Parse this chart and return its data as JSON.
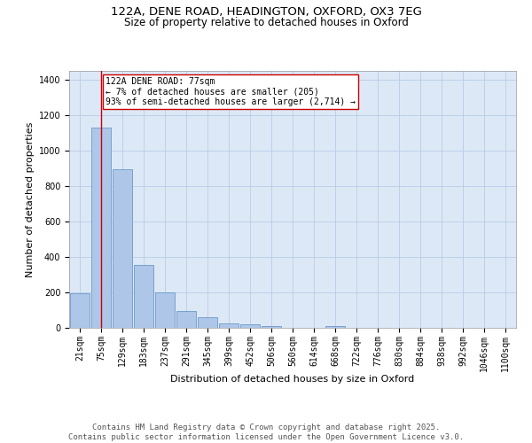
{
  "title_line1": "122A, DENE ROAD, HEADINGTON, OXFORD, OX3 7EG",
  "title_line2": "Size of property relative to detached houses in Oxford",
  "xlabel": "Distribution of detached houses by size in Oxford",
  "ylabel": "Number of detached properties",
  "bar_labels": [
    "21sqm",
    "75sqm",
    "129sqm",
    "183sqm",
    "237sqm",
    "291sqm",
    "345sqm",
    "399sqm",
    "452sqm",
    "506sqm",
    "560sqm",
    "614sqm",
    "668sqm",
    "722sqm",
    "776sqm",
    "830sqm",
    "884sqm",
    "938sqm",
    "992sqm",
    "1046sqm",
    "1100sqm"
  ],
  "bar_values": [
    195,
    1130,
    895,
    355,
    200,
    95,
    60,
    25,
    20,
    12,
    0,
    0,
    12,
    0,
    0,
    0,
    0,
    0,
    0,
    0,
    0
  ],
  "bar_color": "#aec6e8",
  "bar_edge_color": "#5a8fc2",
  "annotation_text": "122A DENE ROAD: 77sqm\n← 7% of detached houses are smaller (205)\n93% of semi-detached houses are larger (2,714) →",
  "annotation_box_color": "#ffffff",
  "annotation_box_edge_color": "#cc0000",
  "vline_x_index": 1,
  "vline_color": "#cc0000",
  "ylim": [
    0,
    1450
  ],
  "yticks": [
    0,
    200,
    400,
    600,
    800,
    1000,
    1200,
    1400
  ],
  "background_color": "#dde8f7",
  "grid_color": "#b8cce4",
  "footer_text": "Contains HM Land Registry data © Crown copyright and database right 2025.\nContains public sector information licensed under the Open Government Licence v3.0.",
  "title_fontsize": 9.5,
  "subtitle_fontsize": 8.5,
  "axis_label_fontsize": 8,
  "tick_fontsize": 7,
  "footer_fontsize": 6.5,
  "annotation_fontsize": 7
}
